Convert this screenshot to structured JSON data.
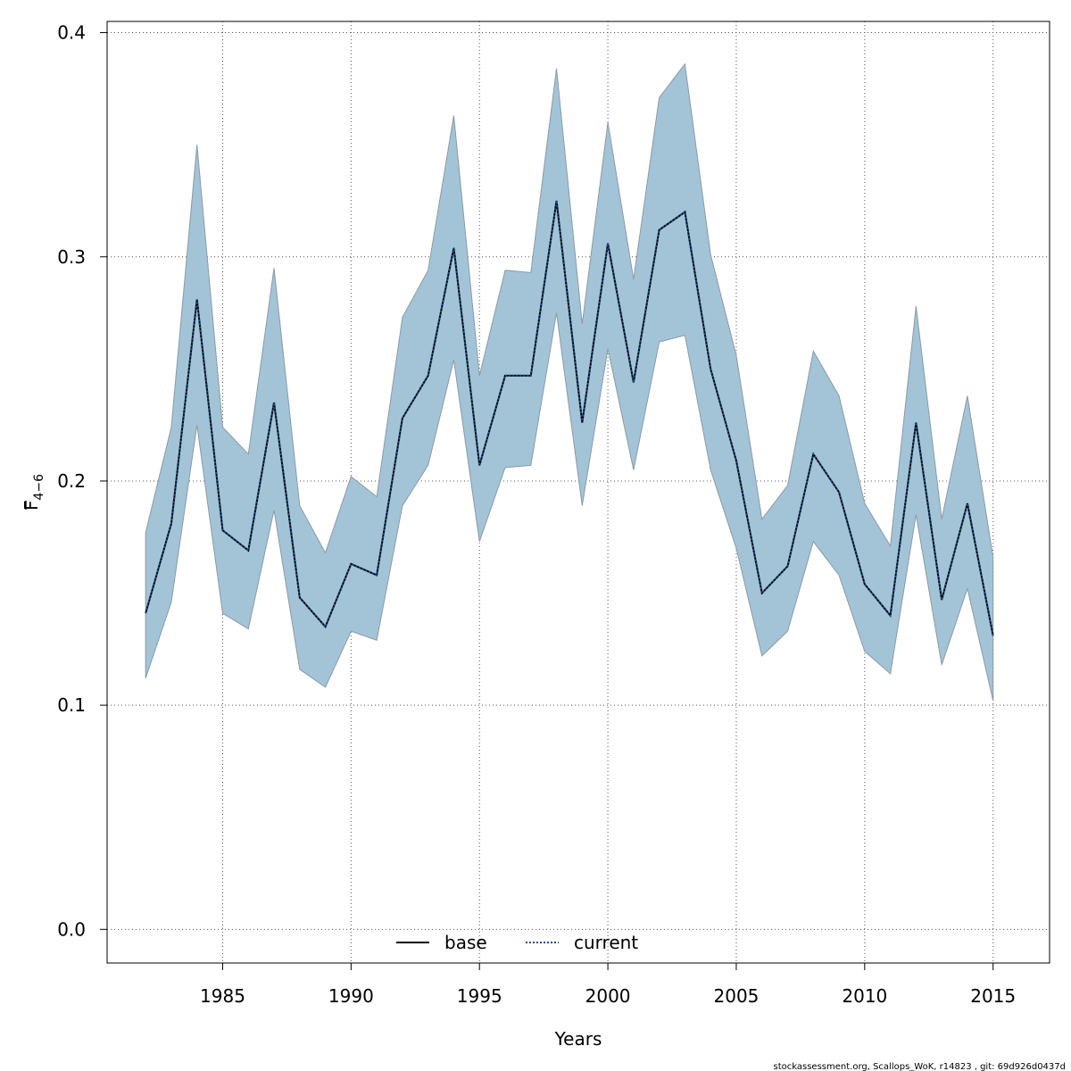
{
  "chart_data": {
    "type": "area",
    "title": "",
    "xlabel": "Years",
    "ylabel_main": "F",
    "ylabel_sub": "4−6",
    "xlim": [
      1980.5,
      2017.2
    ],
    "ylim": [
      -0.015,
      0.405
    ],
    "x_ticks": [
      1985,
      1990,
      1995,
      2000,
      2005,
      2010,
      2015
    ],
    "y_ticks": [
      0.0,
      0.1,
      0.2,
      0.3,
      0.4
    ],
    "y_tick_labels": [
      "0.0",
      "0.1",
      "0.2",
      "0.3",
      "0.4"
    ],
    "grid": true,
    "years": [
      1982,
      1983,
      1984,
      1985,
      1986,
      1987,
      1988,
      1989,
      1990,
      1991,
      1992,
      1993,
      1994,
      1995,
      1996,
      1997,
      1998,
      1999,
      2000,
      2001,
      2002,
      2003,
      2004,
      2005,
      2006,
      2007,
      2008,
      2009,
      2010,
      2011,
      2012,
      2013,
      2014,
      2015
    ],
    "series": [
      {
        "name": "base",
        "line_style": "solid",
        "color": "#000000",
        "values": [
          0.141,
          0.181,
          0.281,
          0.178,
          0.169,
          0.235,
          0.148,
          0.135,
          0.163,
          0.158,
          0.228,
          0.247,
          0.304,
          0.207,
          0.247,
          0.247,
          0.325,
          0.226,
          0.306,
          0.244,
          0.312,
          0.32,
          0.25,
          0.209,
          0.15,
          0.162,
          0.212,
          0.195,
          0.154,
          0.14,
          0.226,
          0.147,
          0.19,
          0.131
        ]
      },
      {
        "name": "current",
        "line_style": "dotted",
        "color": "#1a4f8a",
        "values": [
          0.141,
          0.181,
          0.281,
          0.178,
          0.169,
          0.235,
          0.148,
          0.135,
          0.163,
          0.158,
          0.228,
          0.247,
          0.304,
          0.207,
          0.247,
          0.247,
          0.325,
          0.226,
          0.306,
          0.244,
          0.312,
          0.32,
          0.25,
          0.209,
          0.15,
          0.162,
          0.212,
          0.195,
          0.154,
          0.14,
          0.226,
          0.147,
          0.19,
          0.131
        ]
      }
    ],
    "band": {
      "name": "confidence-interval",
      "color": "#a3c4d6",
      "upper": [
        0.177,
        0.224,
        0.35,
        0.224,
        0.212,
        0.295,
        0.189,
        0.168,
        0.202,
        0.193,
        0.273,
        0.294,
        0.363,
        0.247,
        0.294,
        0.293,
        0.384,
        0.27,
        0.36,
        0.29,
        0.371,
        0.386,
        0.301,
        0.256,
        0.183,
        0.198,
        0.258,
        0.238,
        0.19,
        0.171,
        0.278,
        0.183,
        0.238,
        0.166
      ],
      "lower": [
        0.112,
        0.146,
        0.225,
        0.141,
        0.134,
        0.187,
        0.116,
        0.108,
        0.133,
        0.129,
        0.189,
        0.207,
        0.254,
        0.173,
        0.206,
        0.207,
        0.275,
        0.189,
        0.259,
        0.205,
        0.262,
        0.265,
        0.205,
        0.17,
        0.122,
        0.133,
        0.173,
        0.158,
        0.124,
        0.114,
        0.185,
        0.118,
        0.152,
        0.102
      ]
    },
    "legend": {
      "placement": "bottom-center",
      "entries": [
        {
          "label": "base",
          "style": "solid"
        },
        {
          "label": "current",
          "style": "dotted"
        }
      ]
    },
    "footer": "stockassessment.org, Scallops_WoK, r14823 , git: 69d926d0437d"
  }
}
